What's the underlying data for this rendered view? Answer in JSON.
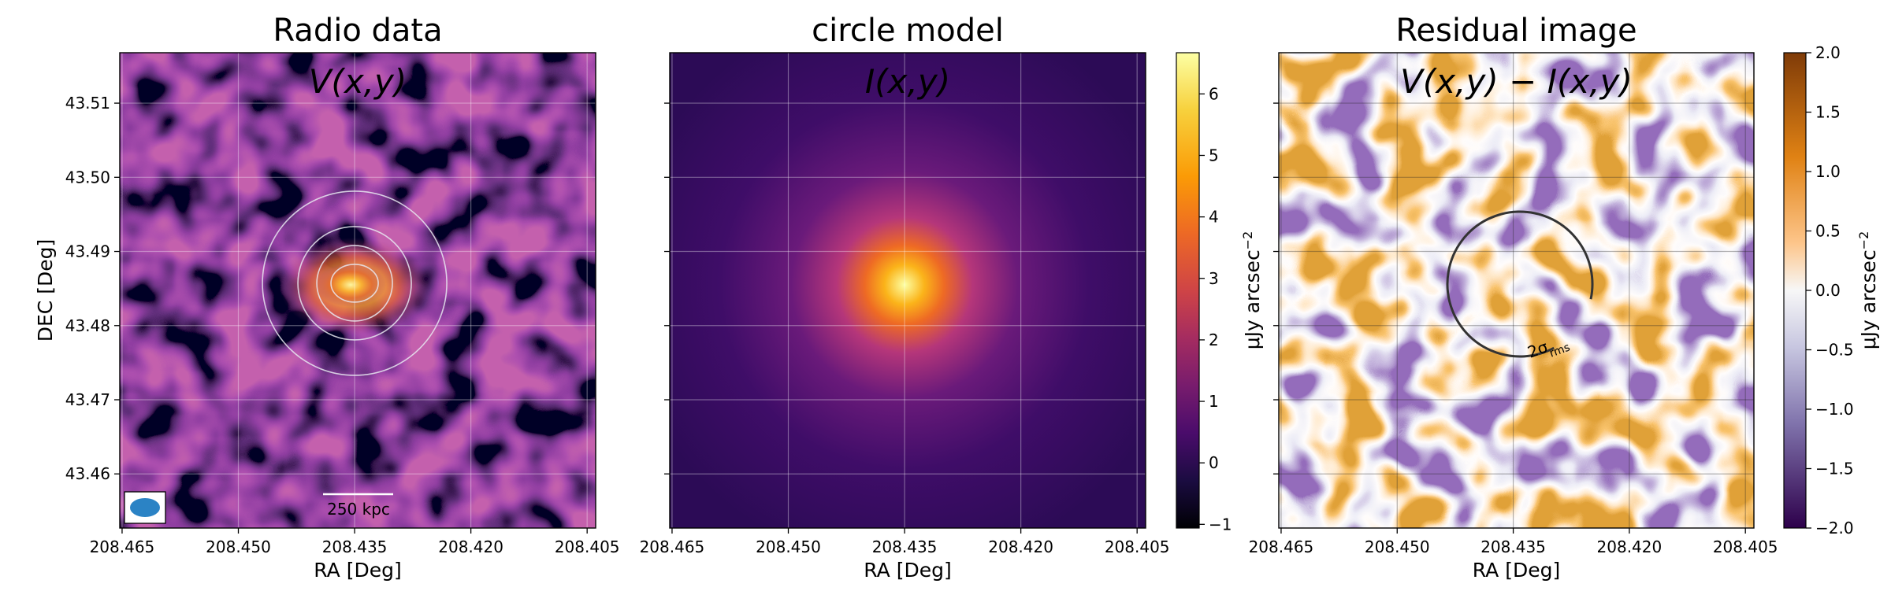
{
  "chart_data": [
    {
      "type": "image",
      "title": "Radio data",
      "annotation": "V(x,y)",
      "xlabel": "RA [Deg]",
      "ylabel": "DEC [Deg]",
      "xlim": [
        208.4653,
        208.4039
      ],
      "xticks": [
        208.465,
        {
          "value": 208.45,
          "label": "208.450"
        },
        208.435,
        {
          "value": 208.42,
          "label": "208.420"
        },
        208.405
      ],
      "ylim": [
        43.4527,
        43.5168
      ],
      "yticks": [
        43.46,
        43.47,
        43.48,
        43.49,
        {
          "value": 43.5,
          "label": "43.50"
        },
        43.51
      ],
      "ytick_labels": true,
      "grid": true,
      "grid_color": "#ffffff",
      "colormap": "inferno",
      "scale_bar": "250 kpc"
    },
    {
      "type": "image",
      "title": "circle model",
      "annotation": "I(x,y)",
      "xlabel": "RA [Deg]",
      "xlim": [
        208.4653,
        208.4039
      ],
      "xticks": [
        208.465,
        {
          "value": 208.45,
          "label": "208.450"
        },
        208.435,
        {
          "value": 208.42,
          "label": "208.420"
        },
        208.405
      ],
      "ylim": [
        43.4527,
        43.5168
      ],
      "yticks": [
        43.46,
        43.47,
        43.48,
        43.49,
        43.5,
        43.51
      ],
      "ytick_labels": false,
      "grid": true,
      "grid_color": "#ffffff",
      "colormap": "inferno",
      "colorbar": {
        "label": "μJy arcsec",
        "label_sup": "−2",
        "lim": [
          -1.06,
          6.67
        ],
        "ticks": [
          {
            "value": -1,
            "label": "−1"
          },
          0,
          1,
          2,
          3,
          4,
          5,
          6
        ]
      }
    },
    {
      "type": "image",
      "title": "Residual image",
      "annotation": "V(x,y) − I(x,y)",
      "xlabel": "RA [Deg]",
      "xlim": [
        208.4653,
        208.4039
      ],
      "xticks": [
        208.465,
        {
          "value": 208.45,
          "label": "208.450"
        },
        208.435,
        {
          "value": 208.42,
          "label": "208.420"
        },
        208.405
      ],
      "ylim": [
        43.4527,
        43.5168
      ],
      "yticks": [
        43.46,
        43.47,
        43.48,
        43.49,
        43.5,
        43.51
      ],
      "ytick_labels": false,
      "grid": true,
      "grid_color": "#222222",
      "colormap": "PuOr",
      "circle_label": "2σ",
      "circle_label_sub": "rms",
      "colorbar": {
        "label": "μJy arcsec",
        "label_sup": "−2",
        "lim": [
          -2,
          2
        ],
        "ticks": [
          {
            "value": -2,
            "label": "−2.0"
          },
          {
            "value": -1.5,
            "label": "−1.5"
          },
          {
            "value": -1,
            "label": "−1.0"
          },
          {
            "value": -0.5,
            "label": "−0.5"
          },
          {
            "value": 0,
            "label": "0.0"
          },
          {
            "value": 0.5,
            "label": "0.5"
          },
          {
            "value": 1,
            "label": "1.0"
          },
          {
            "value": 1.5,
            "label": "1.5"
          },
          {
            "value": 2,
            "label": "2.0"
          }
        ]
      }
    }
  ]
}
